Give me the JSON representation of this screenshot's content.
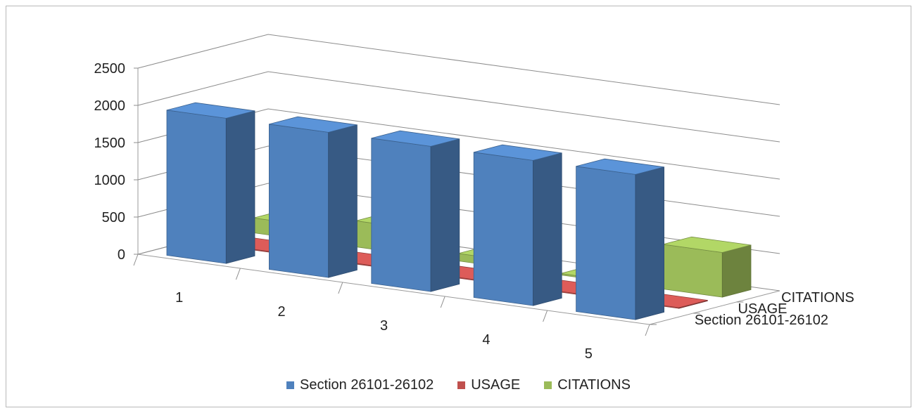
{
  "chart_data": {
    "type": "bar",
    "subtype": "3d-column",
    "categories": [
      "1",
      "2",
      "3",
      "4",
      "5"
    ],
    "series": [
      {
        "name": "Section 26101-26102",
        "values": [
          1950,
          1950,
          1950,
          1950,
          1950
        ],
        "color": "#4f81bd"
      },
      {
        "name": "USAGE",
        "values": [
          10,
          10,
          10,
          10,
          10
        ],
        "color": "#c0504d"
      },
      {
        "name": "CITATIONS",
        "values": [
          200,
          350,
          100,
          20,
          600
        ],
        "color": "#9bbb59"
      }
    ],
    "y_ticks": [
      "0",
      "500",
      "1000",
      "1500",
      "2000",
      "2500"
    ],
    "depth_labels": [
      "Section 26101-26102",
      "USAGE",
      "CITATIONS"
    ],
    "ylim": [
      0,
      2500
    ],
    "grid": true,
    "legend_position": "bottom"
  }
}
